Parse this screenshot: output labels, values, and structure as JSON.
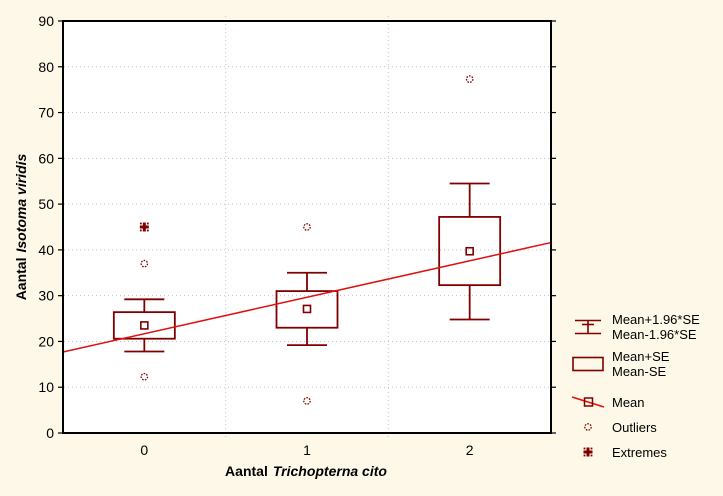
{
  "colors": {
    "background": "#FDF8E7",
    "plot_background": "#FFFFFF",
    "box_stroke": "#800000",
    "trend_line": "#E01010",
    "gridline": "#C4C4C4",
    "axis": "#000000",
    "text": "#000000"
  },
  "axes": {
    "x": {
      "title_prefix": "Aantal",
      "title_species": "Trichopterna cito",
      "ticks": [
        "0",
        "1",
        "2"
      ]
    },
    "y": {
      "title_prefix": "Aantal",
      "title_species": "Isotoma viridis",
      "ticks": [
        "0",
        "10",
        "20",
        "30",
        "40",
        "50",
        "60",
        "70",
        "80",
        "90"
      ]
    }
  },
  "chart_data": {
    "type": "box",
    "title": "",
    "xlabel": "Aantal Trichopterna cito",
    "ylabel": "Aantal Isotoma viridis",
    "categories": [
      0,
      1,
      2
    ],
    "xlim": [
      -0.5,
      2.5
    ],
    "ylim": [
      0,
      90
    ],
    "y_grid_step": 10,
    "grid": "horizontal dotted every 10; vertical dotted at category boundaries",
    "category_boundaries": [
      0.5,
      1.5
    ],
    "series": [
      {
        "x": 0,
        "mean": 23.5,
        "box_low": 20.6,
        "box_high": 26.4,
        "whisker_low": 17.8,
        "whisker_high": 29.2,
        "outliers": [
          37,
          12.3
        ],
        "extremes": [
          45
        ]
      },
      {
        "x": 1,
        "mean": 27.1,
        "box_low": 23.0,
        "box_high": 31.0,
        "whisker_low": 19.2,
        "whisker_high": 35.0,
        "outliers": [
          45,
          7
        ],
        "extremes": []
      },
      {
        "x": 2,
        "mean": 39.7,
        "box_low": 32.3,
        "box_high": 47.2,
        "whisker_low": 24.8,
        "whisker_high": 54.5,
        "outliers": [
          77.3
        ],
        "extremes": []
      }
    ],
    "trend_line": {
      "x": [
        -0.5,
        2.5
      ],
      "y": [
        17.7,
        41.6
      ]
    },
    "legend_position": "right"
  },
  "legend": {
    "items": [
      {
        "icon": "whisker-legend-icon",
        "lines": [
          "Mean+1.96*SE",
          "Mean-1.96*SE"
        ]
      },
      {
        "icon": "box-legend-icon",
        "lines": [
          "Mean+SE",
          "Mean-SE"
        ]
      },
      {
        "icon": "mean-legend-icon",
        "lines": [
          "Mean"
        ]
      },
      {
        "icon": "outlier-legend-icon",
        "lines": [
          "Outliers"
        ]
      },
      {
        "icon": "extreme-legend-icon",
        "lines": [
          "Extremes"
        ]
      }
    ]
  }
}
